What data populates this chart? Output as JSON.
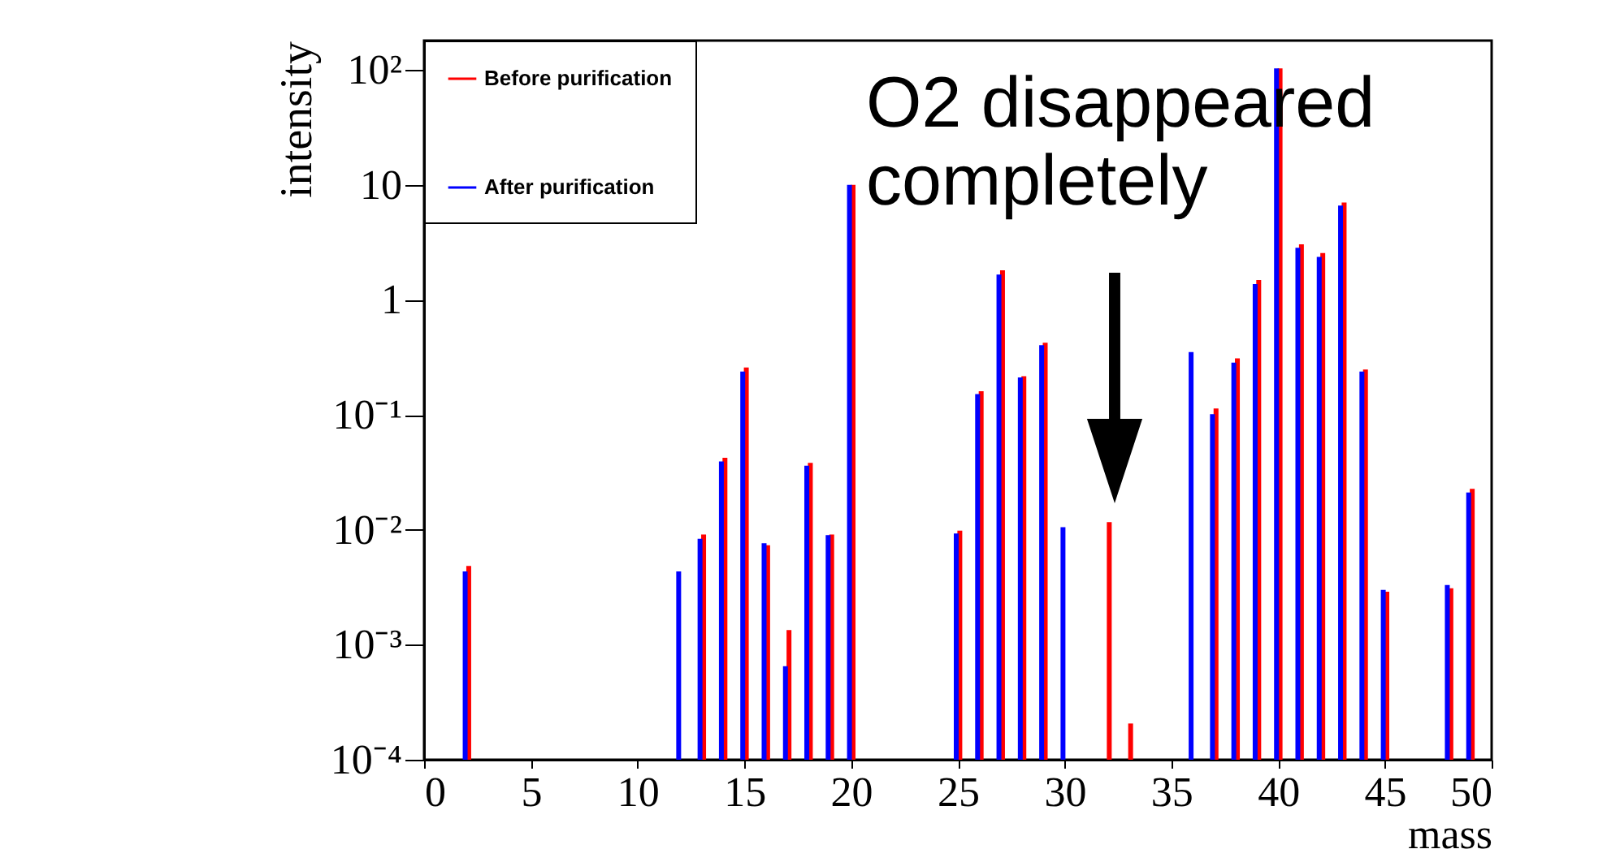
{
  "chart_data": {
    "type": "bar",
    "xlabel": "mass",
    "ylabel": "intensity",
    "log": true,
    "grid": false,
    "legend": "top left",
    "xlim": [
      0,
      50
    ],
    "xticks": [
      0,
      5,
      10,
      15,
      20,
      25,
      30,
      35,
      40,
      45,
      50
    ],
    "ylim": [
      0.0001,
      180
    ],
    "yticks": [
      {
        "value": 0.0001,
        "label": "10⁻⁴"
      },
      {
        "value": 0.001,
        "label": "10⁻³"
      },
      {
        "value": 0.01,
        "label": "10⁻²"
      },
      {
        "value": 0.1,
        "label": "10⁻¹"
      },
      1,
      10,
      {
        "value": 100,
        "label": "10²"
      }
    ],
    "annotations": [
      "O2 disappeared\ncompletely"
    ],
    "series": [
      {
        "name": "Before purification",
        "color": "#ff0000",
        "x": [
          2,
          13,
          14,
          15,
          16,
          17,
          18,
          19,
          20,
          25,
          26,
          27,
          28,
          29,
          32,
          33,
          37,
          38,
          39,
          40,
          41,
          42,
          43,
          44,
          45,
          48,
          49
        ],
        "values": [
          0.0047,
          0.0088,
          0.041,
          0.25,
          0.0071,
          0.0013,
          0.037,
          0.0088,
          9.7,
          0.0095,
          0.155,
          1.75,
          0.21,
          0.41,
          0.0113,
          0.0002,
          0.11,
          0.3,
          1.44,
          100,
          2.94,
          2.47,
          6.8,
          0.24,
          0.0028,
          0.003,
          0.022
        ]
      },
      {
        "name": "After purification",
        "color": "#0000ff",
        "x": [
          2,
          12,
          13,
          14,
          15,
          16,
          17,
          18,
          19,
          20,
          25,
          26,
          27,
          28,
          29,
          30,
          36,
          37,
          38,
          39,
          40,
          41,
          42,
          43,
          44,
          45,
          48,
          49
        ],
        "values": [
          0.0042,
          0.0042,
          0.0081,
          0.038,
          0.23,
          0.0074,
          0.00063,
          0.035,
          0.0087,
          9.7,
          0.009,
          0.147,
          1.61,
          0.205,
          0.39,
          0.0102,
          0.34,
          0.098,
          0.275,
          1.33,
          100,
          2.75,
          2.29,
          6.4,
          0.23,
          0.0029,
          0.0032,
          0.0204
        ]
      }
    ]
  }
}
